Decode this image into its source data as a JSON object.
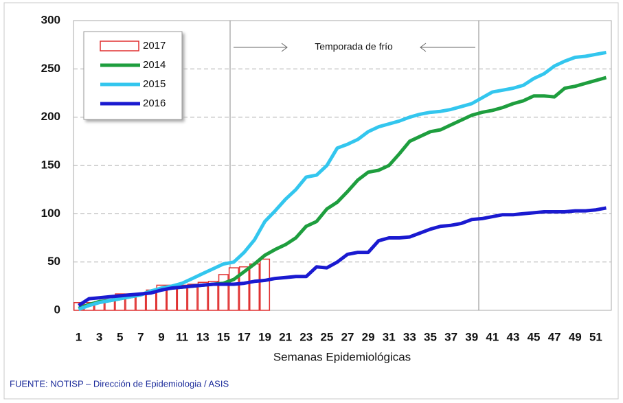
{
  "chart_data": {
    "type": "line",
    "annotation": "Temporada de frío",
    "x_label": "Semanas Epidemiológicas",
    "source": "FUENTE: NOTISP – Dirección de Epidemiologia / ASIS",
    "categories": [
      "1",
      null,
      "3",
      null,
      "5",
      null,
      "7",
      null,
      "9",
      null,
      "11",
      null,
      "13",
      null,
      "15",
      null,
      "17",
      null,
      "19",
      null,
      "21",
      null,
      "23",
      null,
      "25",
      null,
      "27",
      null,
      "29",
      null,
      "31",
      null,
      "33",
      null,
      "35",
      null,
      "37",
      null,
      "39",
      null,
      "41",
      null,
      "43",
      null,
      "45",
      null,
      "47",
      null,
      "49",
      null,
      "51",
      null
    ],
    "series": [
      {
        "name": "2017",
        "type": "bar",
        "color": "#e03030",
        "values": [
          8,
          8,
          9,
          11,
          17,
          17,
          17,
          21,
          26,
          26,
          26,
          27,
          29,
          30,
          37,
          44,
          45,
          48,
          53,
          null,
          null,
          null,
          null,
          null,
          null,
          null,
          null,
          null,
          null,
          null,
          null,
          null,
          null,
          null,
          null,
          null,
          null,
          null,
          null,
          null,
          null,
          null,
          null,
          null,
          null,
          null,
          null,
          null,
          null,
          null,
          null,
          null
        ]
      },
      {
        "name": "2014",
        "type": "line",
        "color": "#1e9e3e",
        "values": [
          2,
          6,
          9,
          10,
          12,
          14,
          16,
          20,
          22,
          23,
          24,
          25,
          26,
          27,
          28,
          32,
          40,
          48,
          57,
          63,
          68,
          75,
          87,
          92,
          105,
          112,
          123,
          135,
          143,
          145,
          150,
          162,
          175,
          180,
          185,
          187,
          192,
          197,
          202,
          205,
          207,
          210,
          214,
          217,
          222,
          222,
          221,
          230,
          232,
          235,
          238,
          241
        ]
      },
      {
        "name": "2015",
        "type": "line",
        "color": "#33c6ee",
        "values": [
          1,
          5,
          8,
          10,
          12,
          14,
          16,
          20,
          23,
          25,
          28,
          33,
          38,
          43,
          48,
          50,
          60,
          73,
          92,
          103,
          115,
          125,
          138,
          140,
          150,
          168,
          172,
          177,
          185,
          190,
          193,
          196,
          200,
          203,
          205,
          206,
          208,
          211,
          214,
          220,
          226,
          228,
          230,
          233,
          240,
          245,
          253,
          258,
          262,
          263,
          265,
          267
        ]
      },
      {
        "name": "2016",
        "type": "line",
        "color": "#1a1ad0",
        "values": [
          5,
          12,
          13,
          14,
          15,
          16,
          17,
          18,
          21,
          23,
          24,
          25,
          26,
          27,
          27,
          27,
          28,
          30,
          31,
          33,
          34,
          35,
          35,
          45,
          44,
          50,
          58,
          60,
          60,
          72,
          75,
          75,
          76,
          80,
          84,
          87,
          88,
          90,
          94,
          95,
          97,
          99,
          99,
          100,
          101,
          102,
          102,
          102,
          103,
          103,
          104,
          106
        ]
      }
    ],
    "ylim": [
      0,
      300
    ],
    "yticks": [
      0,
      50,
      100,
      150,
      200,
      250,
      300
    ],
    "grid": true,
    "legend": "top-left"
  }
}
